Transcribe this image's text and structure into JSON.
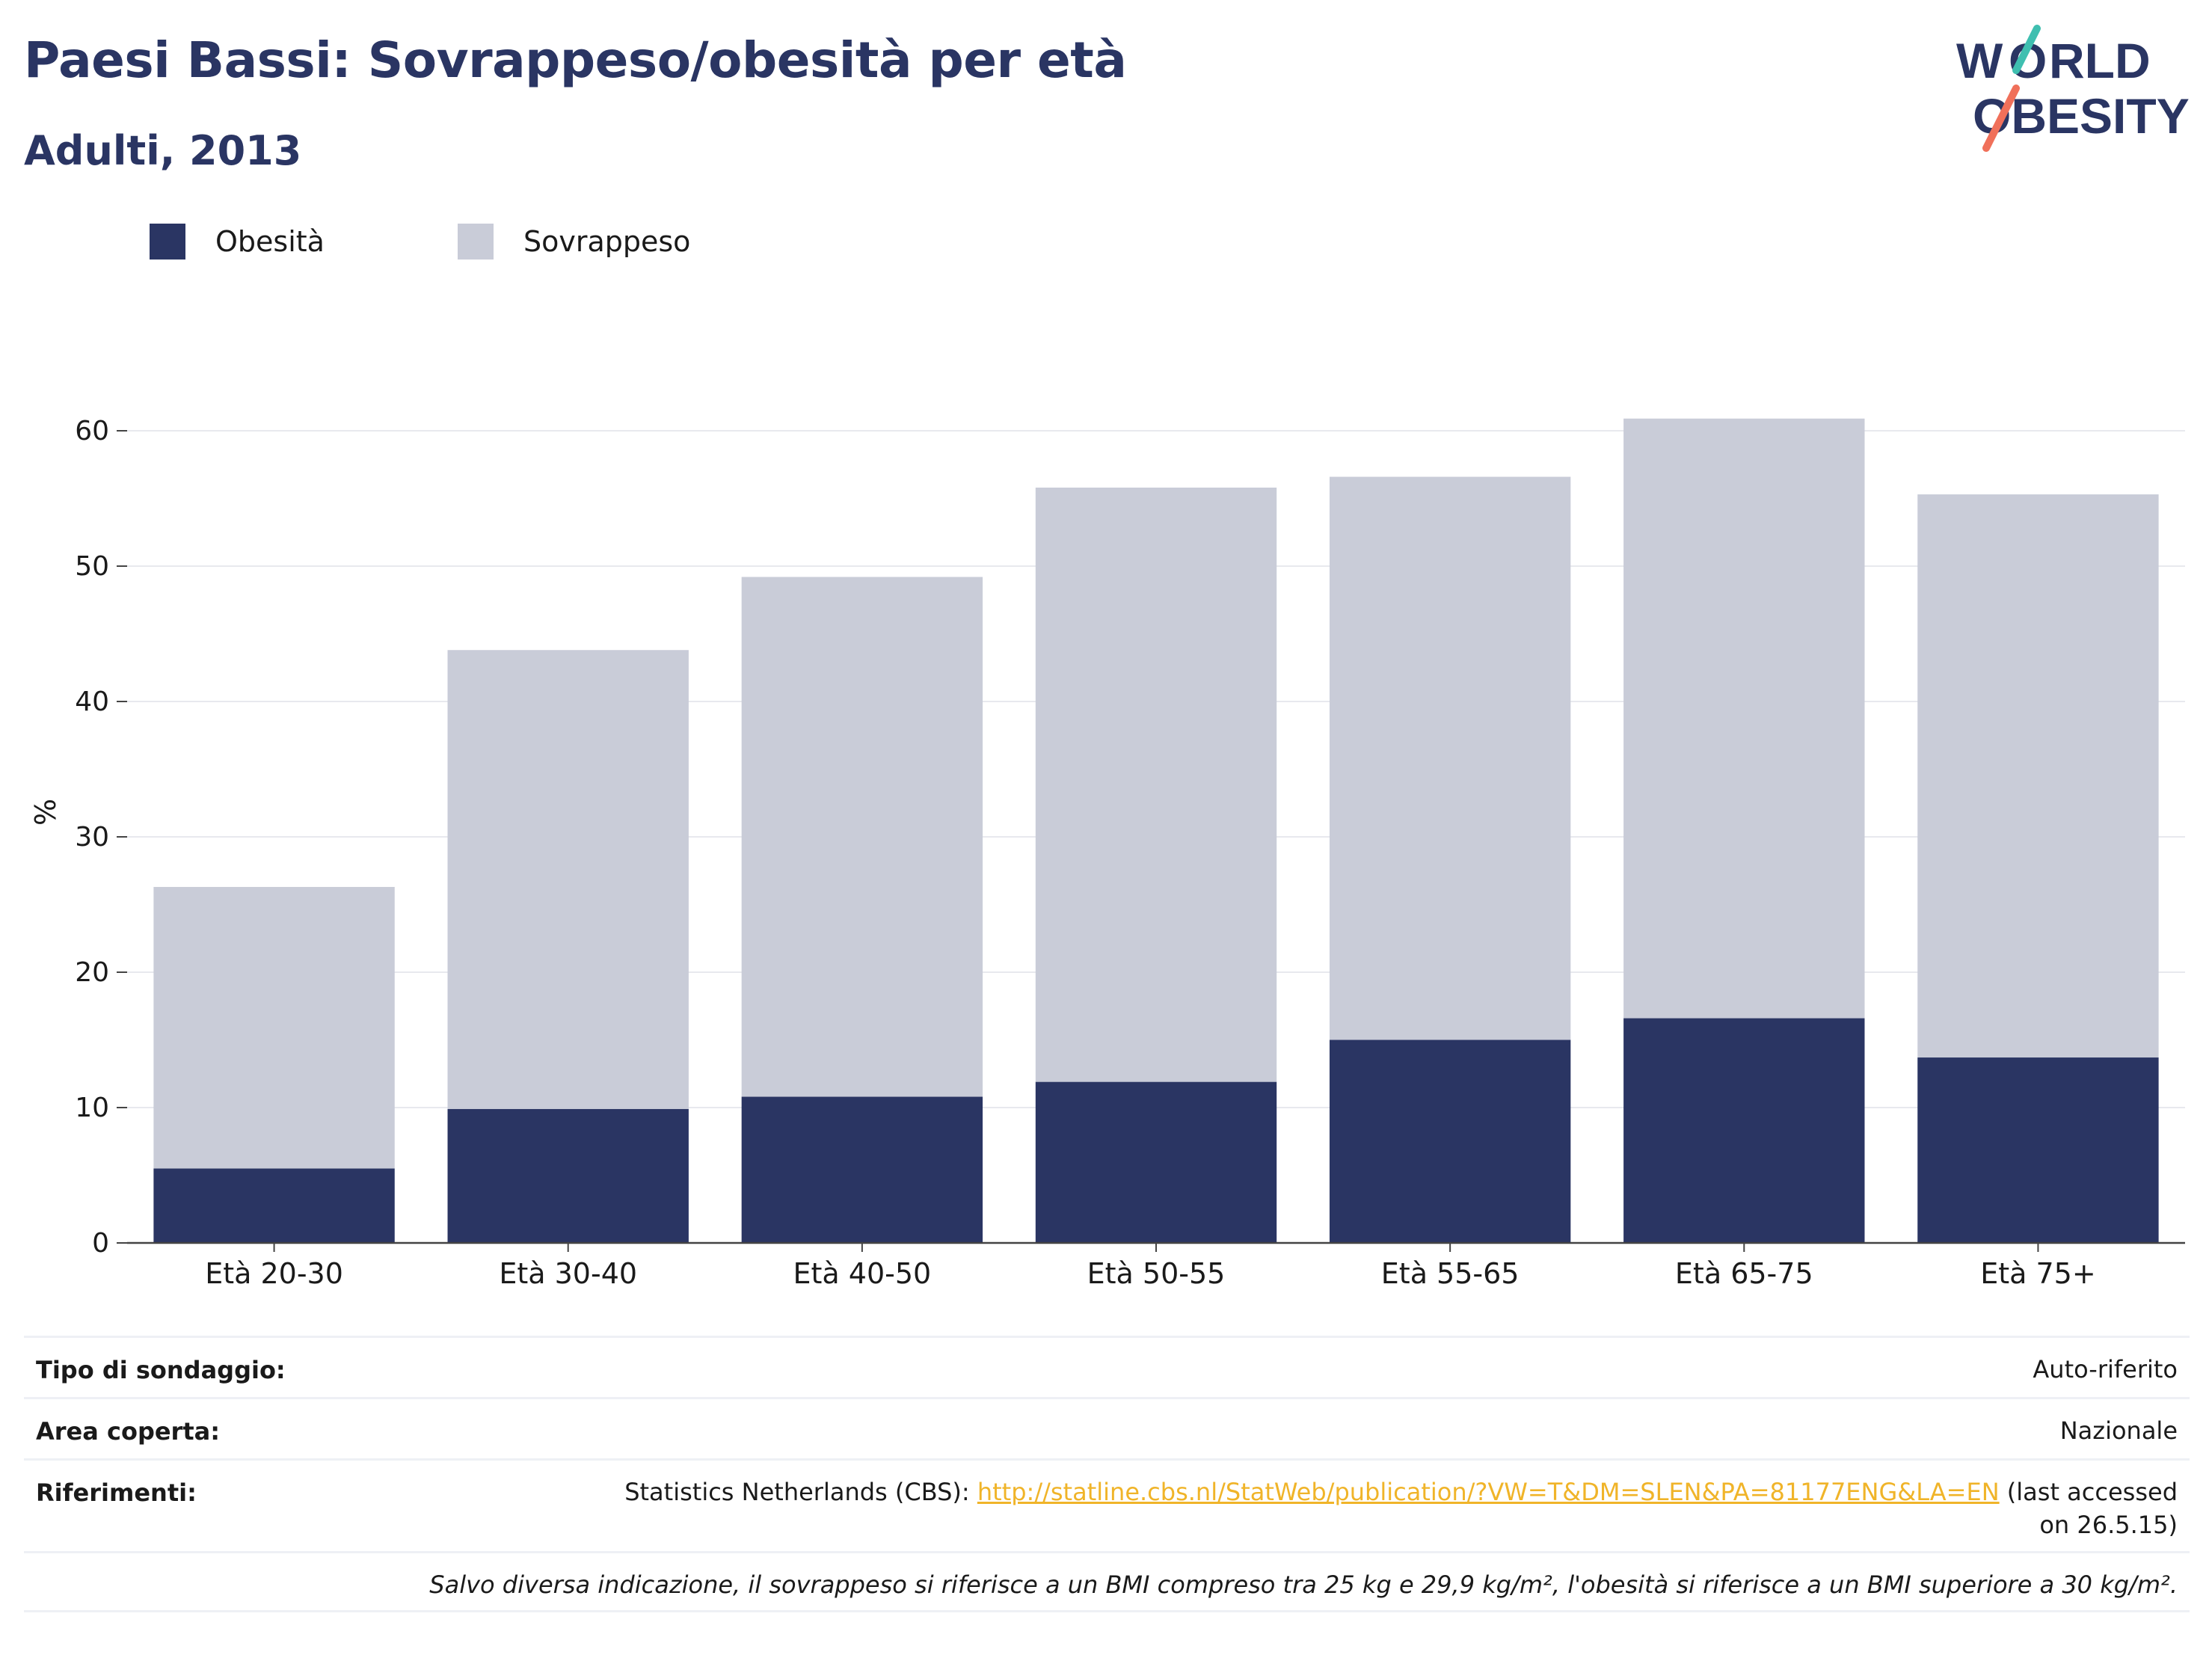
{
  "header": {
    "title": "Paesi Bassi: Sovrappeso/obesità per età",
    "subtitle": "Adulti, 2013"
  },
  "logo": {
    "line1": "WORLD",
    "line2": "OBESITY"
  },
  "legend": [
    {
      "label": "Obesità",
      "color": "#2a3563"
    },
    {
      "label": "Sovrappeso",
      "color": "#c9ccd8"
    }
  ],
  "chart_data": {
    "type": "bar",
    "stacked": true,
    "categories": [
      "Età 20-30",
      "Età 30-40",
      "Età 40-50",
      "Età 50-55",
      "Età 55-65",
      "Età 65-75",
      "Età 75+"
    ],
    "series": [
      {
        "name": "Obesità",
        "values": [
          5.5,
          9.9,
          10.8,
          11.9,
          15.0,
          16.6,
          13.7
        ],
        "color": "#2a3563"
      },
      {
        "name": "Sovrappeso",
        "values": [
          20.8,
          33.9,
          38.4,
          43.9,
          41.6,
          44.3,
          41.6
        ],
        "color": "#c9ccd8"
      }
    ],
    "ylabel": "%",
    "ylim": [
      0,
      66
    ],
    "yticks": [
      0,
      10,
      20,
      30,
      40,
      50,
      60
    ],
    "grid": true,
    "legend_position": "top-left"
  },
  "info": {
    "survey_type_label": "Tipo di sondaggio:",
    "survey_type_value": "Auto-riferito",
    "area_label": "Area coperta:",
    "area_value": "Nazionale",
    "references_label": "Riferimenti:",
    "references_prefix": "Statistics Netherlands (CBS): ",
    "references_link": "http://statline.cbs.nl/StatWeb/publication/?VW=T&DM=SLEN&PA=81177ENG&LA=EN",
    "references_suffix": " (last accessed on 26.5.15)",
    "footnote": "Salvo diversa indicazione, il sovrappeso si riferisce a un BMI compreso tra 25 kg e 29,9 kg/m², l'obesità si riferisce a un BMI superiore a 30 kg/m²."
  }
}
